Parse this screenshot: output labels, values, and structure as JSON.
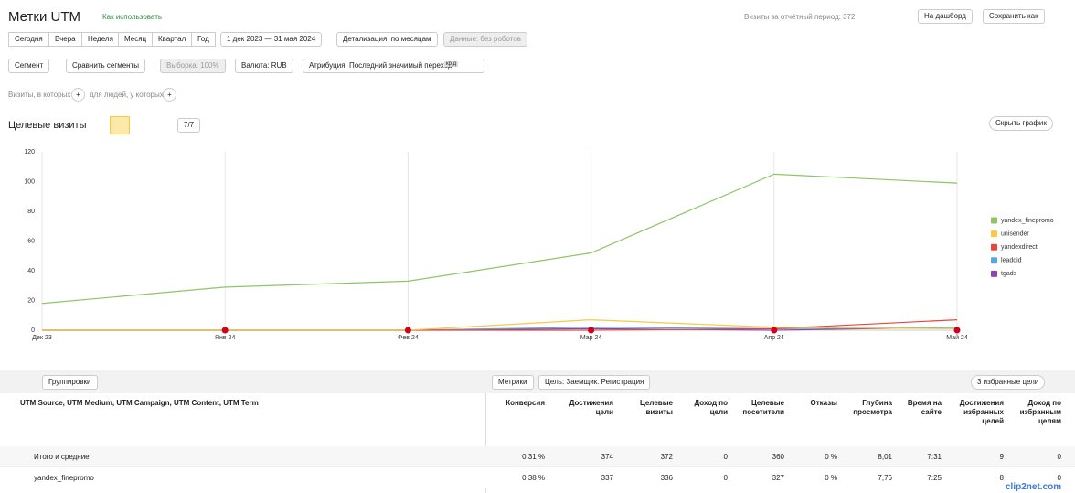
{
  "header": {
    "title": "Метки UTM",
    "help_link": "Как использовать",
    "visits_total": "Визиты за отчётный период: 372",
    "dashboard_button": "На дашборд",
    "save_button": "Сохранить как"
  },
  "period_buttons": [
    "Сегодня",
    "Вчера",
    "Неделя",
    "Месяц",
    "Квартал",
    "Год"
  ],
  "date_range": "1 дек 2023 — 31 мая 2024",
  "detail": "Детализация: по месяцам",
  "data_filter": "Данные: без роботов",
  "segment_bar": {
    "segment": "Сегмент",
    "compare": "Сравнить сегменты",
    "sample": "Выборка: 100%",
    "currency": "Валюта: RUB",
    "attribution": "Атрибуция: Последний значимый переход",
    "attribution_badge": "кр.д"
  },
  "filters": {
    "visits": "Визиты, в которых",
    "people": "для людей, у которых"
  },
  "chart_header": {
    "title": "Целевые визиты",
    "series_count": "7/7",
    "hide_button": "Скрыть график"
  },
  "chart_data": {
    "type": "line",
    "categories": [
      "Дек 23",
      "Янв 24",
      "Фев 24",
      "Мар 24",
      "Апр 24",
      "Май 24"
    ],
    "series": [
      {
        "name": "yandex_finepromo",
        "color": "#8cc665",
        "values": [
          18,
          29,
          33,
          52,
          105,
          99
        ]
      },
      {
        "name": "unisender",
        "color": "#f7c948",
        "values": [
          0,
          0,
          0,
          7,
          2,
          1
        ]
      },
      {
        "name": "yandexdirect",
        "color": "#e8453c",
        "values": [
          0,
          0,
          0,
          0,
          1,
          7
        ]
      },
      {
        "name": "leadgid",
        "color": "#5aa7de",
        "values": [
          0,
          0,
          0,
          2,
          1,
          2
        ]
      },
      {
        "name": "tgads",
        "color": "#8e44ad",
        "values": [
          0,
          0,
          0,
          1,
          0,
          2
        ]
      }
    ],
    "ylim": [
      0,
      120
    ],
    "yticks": [
      0,
      20,
      40,
      60,
      80,
      100,
      120
    ],
    "legend": "right"
  },
  "table": {
    "toolbar": {
      "groupings": "Группировки",
      "metrics": "Метрики",
      "goal": "Цель: Заемщик. Регистрация",
      "favorites": "3 избранные цели"
    },
    "dimension_header": "UTM Source, UTM Medium, UTM Campaign, UTM Content, UTM Term",
    "columns": [
      "Конверсия",
      "Достижения цели",
      "Целевые визиты",
      "Доход по цели",
      "Целевые посетители",
      "Отказы",
      "Глубина просмотра",
      "Время на сайте",
      "Достижения избранных целей",
      "Доход по избранным целям"
    ],
    "rows": [
      {
        "label": "Итого и средние",
        "cells": [
          "0,31 %",
          "374",
          "372",
          "0",
          "360",
          "0 %",
          "8,01",
          "7:31",
          "9",
          "0"
        ]
      },
      {
        "label": "yandex_finepromo",
        "cells": [
          "0,38 %",
          "337",
          "336",
          "0",
          "327",
          "0 %",
          "7,76",
          "7:25",
          "8",
          "0"
        ]
      }
    ]
  },
  "watermark": "clip2net.com"
}
